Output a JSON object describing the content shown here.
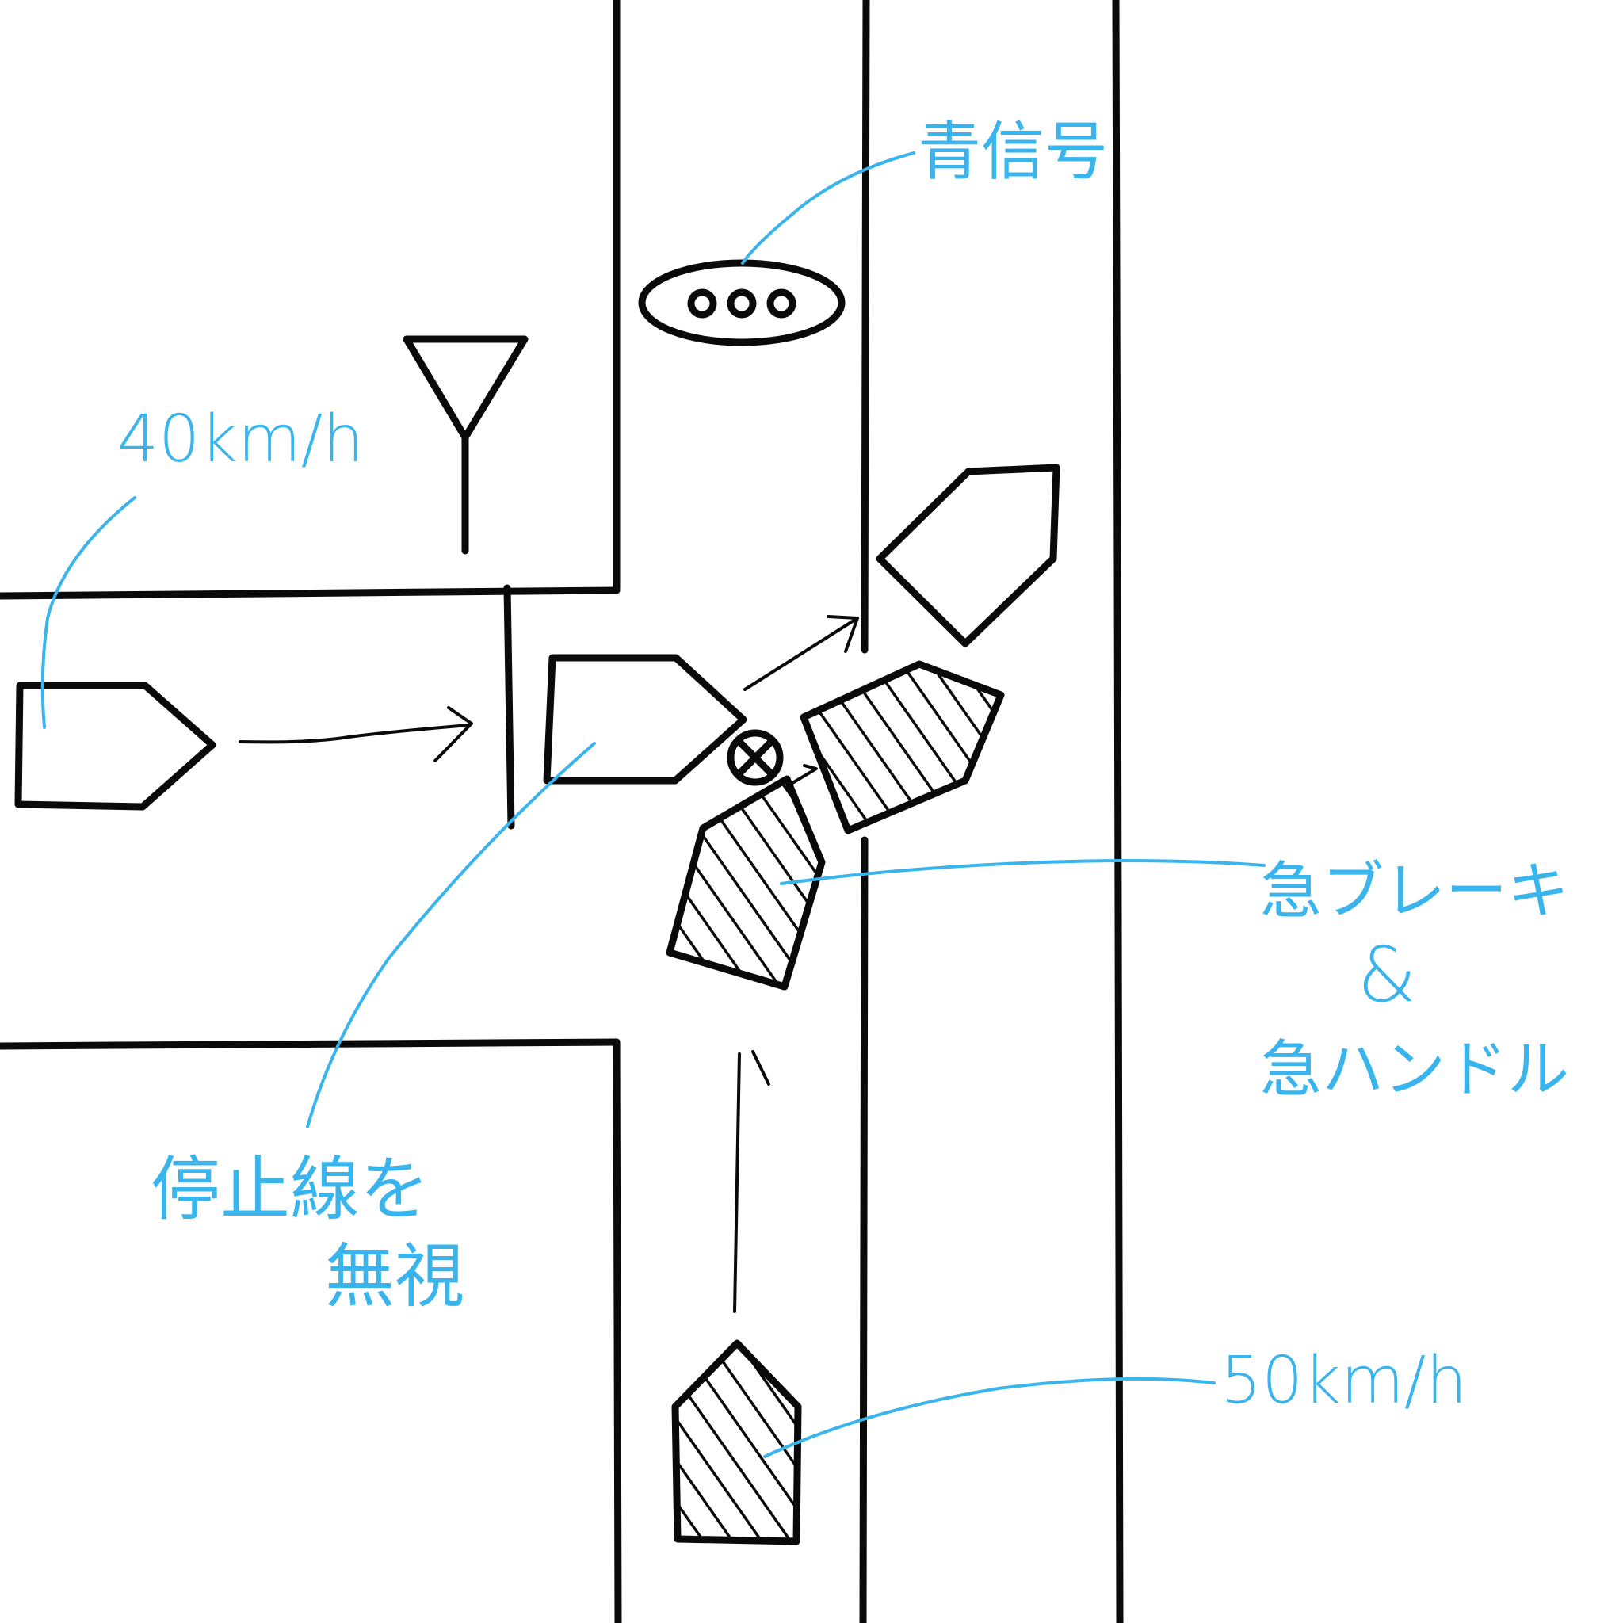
{
  "colors": {
    "ink": "#0a0a0a",
    "annotation": "#3ab4ec"
  },
  "labels": {
    "green_signal": "青信号",
    "speed_left": "40km/h",
    "speed_bottom": "50km/h",
    "stop_line_ignored_1": "停止線を",
    "stop_line_ignored_2": "無視",
    "sudden_brake": "急ブレーキ",
    "and": "&",
    "sudden_steer": "急ハンドル"
  },
  "icons": {
    "traffic_light": "traffic-light-icon",
    "stop_sign": "stop-sign-icon",
    "collision": "collision-mark-icon"
  }
}
